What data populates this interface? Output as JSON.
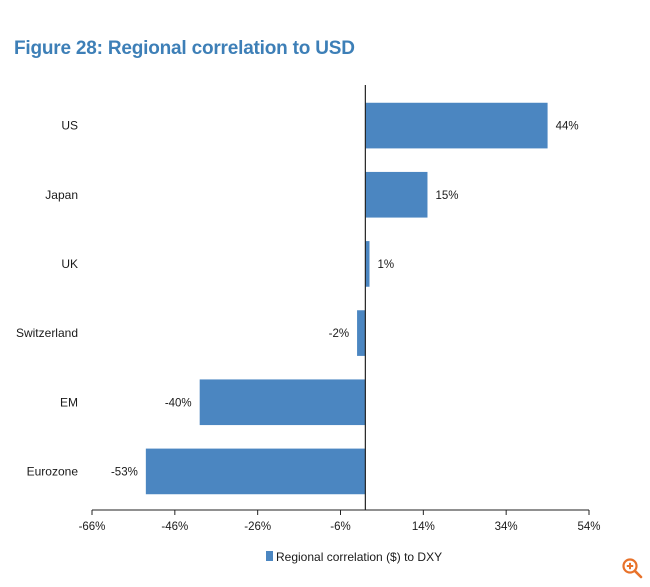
{
  "figure": {
    "title": "Figure 28: Regional correlation to USD"
  },
  "colors": {
    "bar": "#4b86c1",
    "title": "#3d7fb7",
    "axis": "#222222",
    "zoom_icon": "#e8722a"
  },
  "chart_data": {
    "type": "bar",
    "orientation": "horizontal",
    "title": "Figure 28: Regional correlation to USD",
    "categories": [
      "US",
      "Japan",
      "UK",
      "Switzerland",
      "EM",
      "Eurozone"
    ],
    "series": [
      {
        "name": "Regional correlation ($) to DXY",
        "values": [
          44,
          15,
          1,
          -2,
          -40,
          -53
        ],
        "labels": [
          "44%",
          "15%",
          "1%",
          "-2%",
          "-40%",
          "-53%"
        ]
      }
    ],
    "xlim": [
      -66,
      54
    ],
    "xticks": [
      -66,
      -46,
      -26,
      -6,
      14,
      34,
      54
    ],
    "xtick_labels": [
      "-66%",
      "-46%",
      "-26%",
      "-6%",
      "14%",
      "34%",
      "54%"
    ],
    "xlabel": "",
    "ylabel": "",
    "grid": false,
    "legend": {
      "position": "bottom",
      "entries": [
        "Regional correlation ($) to DXY"
      ]
    }
  },
  "ui": {
    "zoom_icon": "zoom-in-icon"
  }
}
